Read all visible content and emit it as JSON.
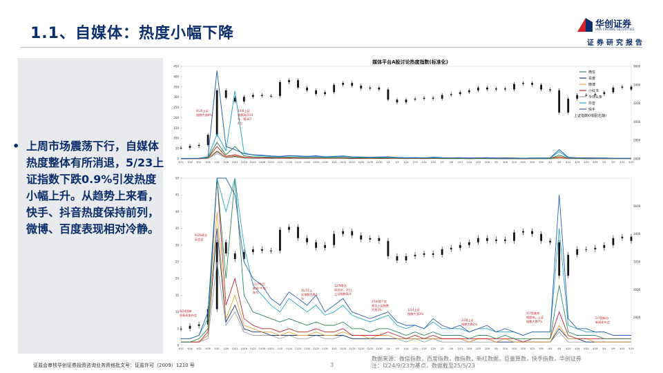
{
  "header": {
    "title": "1.1、自媒体：热度小幅下降",
    "brand_name": "华创证券",
    "brand_en": "HUA CHUANG SECURITIES",
    "tagline": "证券研究报告",
    "colors": {
      "navy": "#0b2d6b",
      "red": "#d2202f"
    }
  },
  "sidebar": {
    "bullet": "•",
    "text": "上周市场震荡下行，自媒体热度整体有所消退，5/23上证指数下跌0.9%引发热度小幅上升。从趋势上来看，快手、抖音热度保持前列，微博、百度表现相对冷静。"
  },
  "footer": {
    "license": "证监会审核华创证券投资咨询业务资格批文号：证监许可（2009）1210 号",
    "page": "3",
    "source_line1": "数据来源：微信指数，百度指数，微指数，新红数据，巨量算数，快手指数，华创证券",
    "source_line2": "注：以24/9/23为基点，数据截至25/5/23"
  },
  "chart_data": {
    "type": "line",
    "title": "媒体平台A股讨论热度指数(标准化)",
    "x_dates": [
      "9/11",
      "9/16",
      "9/21",
      "9/26",
      "10/1",
      "10/6",
      "10/11",
      "10/16",
      "10/21",
      "10/26",
      "10/31",
      "11/5",
      "11/10",
      "11/15",
      "11/20",
      "11/25",
      "11/30",
      "12/5",
      "12/10",
      "12/15",
      "12/20",
      "12/25",
      "12/30",
      "1/4",
      "1/9",
      "1/14",
      "1/19",
      "1/24",
      "1/29",
      "2/3",
      "2/8",
      "2/13",
      "2/18",
      "2/23",
      "2/28",
      "3/5",
      "3/10",
      "3/15",
      "3/20",
      "3/25",
      "3/30",
      "4/4",
      "4/9",
      "4/14",
      "4/19",
      "4/24",
      "4/29",
      "5/4",
      "5/9",
      "5/14",
      "5/19"
    ],
    "panels": [
      {
        "name": "full",
        "ylim": [
          0,
          450
        ],
        "y_ticks": [
          0,
          50,
          100,
          150,
          200,
          250,
          300,
          350,
          400,
          450
        ],
        "y2lim": [
          2600,
          3600
        ],
        "y2_ticks": [
          2600,
          2800,
          3000,
          3200,
          3400,
          3600
        ]
      },
      {
        "name": "zoom",
        "ylim": [
          0,
          50
        ],
        "y_ticks": [
          0,
          5,
          10,
          15,
          20,
          25,
          30,
          35,
          40,
          45,
          50
        ],
        "y2lim": [
          2600,
          3800
        ],
        "y2_ticks": [
          2800,
          3000,
          3200,
          3400,
          3600
        ]
      }
    ],
    "legend": {
      "placement": "top-right",
      "entries": [
        {
          "name": "微信",
          "color": "#2e8b57"
        },
        {
          "name": "百度",
          "color": "#1f3b73"
        },
        {
          "name": "微博",
          "color": "#e8a33a"
        },
        {
          "name": "小红书",
          "color": "#c0282e"
        },
        {
          "name": "今日头条",
          "color": "#9aa3ad"
        },
        {
          "name": "抖音",
          "color": "#2aa7c9"
        },
        {
          "name": "快手",
          "color": "#2c5fb3"
        }
      ],
      "kline_label": "上证指数K线图(右轴)"
    },
    "series": [
      {
        "name": "快手",
        "color": "#2c5fb3",
        "values": [
          2,
          2,
          3,
          10,
          430,
          60,
          45,
          25,
          20,
          18,
          14,
          12,
          16,
          14,
          12,
          15,
          10,
          12,
          14,
          10,
          9,
          8,
          9,
          10,
          7,
          6,
          6,
          5,
          8,
          6,
          5,
          6,
          4,
          5,
          6,
          4,
          5,
          4,
          3,
          4,
          4,
          4,
          45,
          8,
          5,
          5,
          4,
          4,
          3,
          3,
          3
        ]
      },
      {
        "name": "抖音",
        "color": "#2aa7c9",
        "values": [
          2,
          2,
          3,
          8,
          120,
          40,
          330,
          30,
          18,
          15,
          12,
          10,
          14,
          12,
          10,
          12,
          9,
          10,
          12,
          9,
          8,
          7,
          8,
          9,
          6,
          5,
          6,
          5,
          7,
          5,
          5,
          5,
          4,
          5,
          5,
          4,
          4,
          4,
          3,
          4,
          4,
          4,
          35,
          6,
          5,
          4,
          4,
          4,
          3,
          3,
          3
        ]
      },
      {
        "name": "微信",
        "color": "#2e8b57",
        "values": [
          1,
          1,
          2,
          5,
          80,
          20,
          60,
          15,
          10,
          9,
          8,
          7,
          8,
          7,
          6,
          7,
          6,
          6,
          7,
          5,
          5,
          4,
          5,
          5,
          4,
          3,
          4,
          3,
          4,
          3,
          3,
          3,
          2,
          3,
          3,
          2,
          3,
          2,
          2,
          2,
          2,
          2,
          18,
          4,
          3,
          3,
          3,
          2,
          2,
          2,
          2
        ]
      },
      {
        "name": "小红书",
        "color": "#c0282e",
        "values": [
          1,
          1,
          1,
          4,
          60,
          12,
          20,
          8,
          6,
          5,
          5,
          4,
          5,
          4,
          4,
          5,
          4,
          4,
          5,
          3,
          3,
          3,
          3,
          4,
          3,
          2,
          3,
          2,
          3,
          2,
          2,
          2,
          2,
          2,
          2,
          2,
          2,
          2,
          1,
          2,
          2,
          2,
          10,
          3,
          2,
          2,
          2,
          2,
          2,
          2,
          2
        ]
      },
      {
        "name": "微博",
        "color": "#e8a33a",
        "values": [
          1,
          1,
          1,
          3,
          40,
          8,
          15,
          6,
          5,
          4,
          4,
          3,
          4,
          3,
          3,
          4,
          3,
          3,
          4,
          3,
          3,
          2,
          3,
          3,
          2,
          2,
          2,
          2,
          2,
          2,
          2,
          2,
          1,
          2,
          2,
          1,
          2,
          1,
          1,
          1,
          1,
          1,
          6,
          2,
          2,
          2,
          1,
          1,
          1,
          1,
          1
        ]
      },
      {
        "name": "百度",
        "color": "#1f3b73",
        "values": [
          1,
          1,
          1,
          3,
          35,
          7,
          12,
          5,
          4,
          4,
          3,
          3,
          3,
          3,
          3,
          3,
          3,
          3,
          3,
          2,
          2,
          2,
          2,
          2,
          2,
          2,
          2,
          2,
          2,
          2,
          2,
          2,
          1,
          2,
          2,
          1,
          1,
          1,
          1,
          1,
          1,
          1,
          5,
          2,
          2,
          1,
          1,
          1,
          1,
          1,
          1
        ]
      },
      {
        "name": "今日头条",
        "color": "#9aa3ad",
        "values": [
          1,
          1,
          1,
          2,
          25,
          6,
          10,
          4,
          3,
          3,
          3,
          2,
          3,
          2,
          2,
          3,
          2,
          2,
          3,
          2,
          2,
          2,
          2,
          2,
          2,
          1,
          2,
          1,
          2,
          1,
          1,
          1,
          1,
          1,
          1,
          1,
          1,
          1,
          1,
          1,
          1,
          1,
          4,
          1,
          1,
          1,
          1,
          1,
          1,
          1,
          1
        ]
      }
    ],
    "shanghai_close": [
      2720,
      2740,
      2750,
      2860,
      3340,
      3260,
      3220,
      3270,
      3290,
      3280,
      3280,
      3430,
      3450,
      3370,
      3340,
      3300,
      3320,
      3400,
      3420,
      3390,
      3360,
      3370,
      3350,
      3240,
      3210,
      3240,
      3250,
      3260,
      3250,
      3290,
      3300,
      3320,
      3340,
      3370,
      3350,
      3360,
      3350,
      3410,
      3420,
      3400,
      3350,
      3340,
      3100,
      3250,
      3290,
      3290,
      3300,
      3320,
      3370,
      3380,
      3350
    ],
    "annotations": [
      {
        "panel": "full",
        "text": "9/30上证指数大涨8%"
      },
      {
        "panel": "full",
        "text": "10/8上证指数高开10%，报3674点"
      },
      {
        "panel": "zoom",
        "text": "9/26政治局会议"
      },
      {
        "panel": "zoom",
        "text": "9/24国新办新闻发布会"
      },
      {
        "panel": "zoom",
        "text": "11/7午后刷屏“牛市”账号"
      },
      {
        "panel": "zoom",
        "text": "11/22上证指数大跌3%"
      },
      {
        "panel": "zoom",
        "text": "12/9政治局会议，次日上证指数高开"
      },
      {
        "panel": "zoom",
        "text": "25年首个交易日上证指数大跌3%"
      },
      {
        "panel": "zoom",
        "text": "1/14上证指数大涨3%"
      },
      {
        "panel": "zoom",
        "text": "2/28上证指数大跌2%"
      },
      {
        "panel": "zoom",
        "text": "4/7受美关税影响，上证指数大跌7%"
      },
      {
        "panel": "zoom",
        "text": "5/7国新办新闻发布会"
      }
    ]
  }
}
